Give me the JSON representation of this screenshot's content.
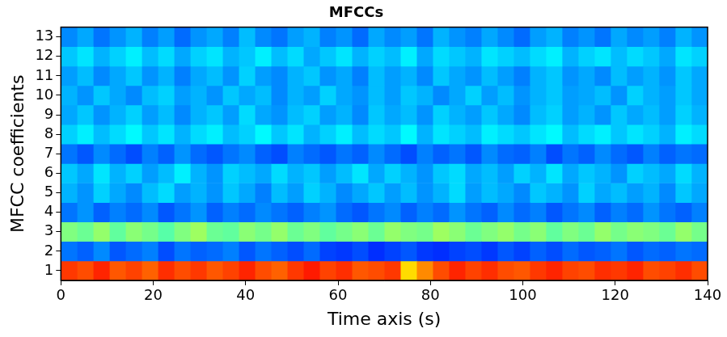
{
  "chart_data": {
    "type": "heatmap",
    "title": "MFCCs",
    "x_label": "Time axis (s)",
    "y_label": "MFCC coefficients",
    "xlim": [
      0,
      140
    ],
    "xticks": [
      0,
      20,
      40,
      60,
      80,
      100,
      120,
      140
    ],
    "y": [
      1,
      2,
      3,
      4,
      5,
      6,
      7,
      8,
      9,
      10,
      11,
      12,
      13
    ],
    "color": "jet",
    "zlim": [
      0,
      1
    ],
    "grid": false,
    "x_bins": [
      0,
      3.5,
      7,
      10.5,
      14,
      17.5,
      21,
      24.5,
      28,
      31.5,
      35,
      38.5,
      42,
      45.5,
      49,
      52.5,
      56,
      59.5,
      63,
      66.5,
      70,
      73.5,
      77,
      80.5,
      84,
      87.5,
      91,
      94.5,
      98,
      101.5,
      105,
      108.5,
      112,
      115.5,
      119,
      122.5,
      126,
      129.5,
      133,
      136.5,
      140
    ],
    "cells": [
      [
        0.82,
        0.8,
        0.84,
        0.79,
        0.81,
        0.78,
        0.83,
        0.8,
        0.82,
        0.79,
        0.81,
        0.84,
        0.8,
        0.78,
        0.82,
        0.85,
        0.81,
        0.83,
        0.79,
        0.8,
        0.82,
        0.66,
        0.74,
        0.8,
        0.84,
        0.81,
        0.83,
        0.8,
        0.79,
        0.82,
        0.84,
        0.81,
        0.8,
        0.83,
        0.82,
        0.84,
        0.8,
        0.81,
        0.83,
        0.8
      ],
      [
        0.24,
        0.22,
        0.26,
        0.21,
        0.23,
        0.25,
        0.2,
        0.24,
        0.22,
        0.23,
        0.25,
        0.21,
        0.24,
        0.22,
        0.2,
        0.23,
        0.19,
        0.18,
        0.2,
        0.17,
        0.19,
        0.21,
        0.18,
        0.17,
        0.19,
        0.2,
        0.18,
        0.21,
        0.19,
        0.22,
        0.2,
        0.23,
        0.21,
        0.22,
        0.24,
        0.21,
        0.23,
        0.22,
        0.24,
        0.23
      ],
      [
        0.5,
        0.48,
        0.52,
        0.47,
        0.51,
        0.49,
        0.46,
        0.5,
        0.53,
        0.48,
        0.47,
        0.51,
        0.49,
        0.52,
        0.48,
        0.5,
        0.47,
        0.49,
        0.51,
        0.48,
        0.52,
        0.5,
        0.49,
        0.53,
        0.51,
        0.48,
        0.5,
        0.52,
        0.49,
        0.51,
        0.47,
        0.5,
        0.48,
        0.52,
        0.49,
        0.51,
        0.5,
        0.48,
        0.52,
        0.49
      ],
      [
        0.24,
        0.27,
        0.22,
        0.25,
        0.23,
        0.26,
        0.21,
        0.24,
        0.27,
        0.22,
        0.25,
        0.23,
        0.26,
        0.24,
        0.22,
        0.25,
        0.27,
        0.23,
        0.21,
        0.24,
        0.26,
        0.22,
        0.25,
        0.23,
        0.27,
        0.24,
        0.22,
        0.26,
        0.23,
        0.25,
        0.21,
        0.24,
        0.26,
        0.22,
        0.25,
        0.23,
        0.27,
        0.24,
        0.22,
        0.25
      ],
      [
        0.3,
        0.27,
        0.33,
        0.29,
        0.26,
        0.31,
        0.34,
        0.28,
        0.3,
        0.27,
        0.32,
        0.29,
        0.25,
        0.31,
        0.28,
        0.33,
        0.3,
        0.26,
        0.29,
        0.32,
        0.28,
        0.31,
        0.27,
        0.3,
        0.34,
        0.28,
        0.31,
        0.29,
        0.26,
        0.32,
        0.3,
        0.27,
        0.33,
        0.29,
        0.31,
        0.28,
        0.3,
        0.26,
        0.32,
        0.29
      ],
      [
        0.32,
        0.29,
        0.35,
        0.3,
        0.33,
        0.28,
        0.31,
        0.36,
        0.3,
        0.27,
        0.33,
        0.31,
        0.29,
        0.34,
        0.3,
        0.32,
        0.28,
        0.31,
        0.35,
        0.29,
        0.33,
        0.3,
        0.27,
        0.32,
        0.34,
        0.29,
        0.31,
        0.28,
        0.33,
        0.3,
        0.35,
        0.29,
        0.32,
        0.3,
        0.27,
        0.33,
        0.31,
        0.29,
        0.34,
        0.3
      ],
      [
        0.24,
        0.21,
        0.26,
        0.23,
        0.2,
        0.25,
        0.22,
        0.27,
        0.23,
        0.21,
        0.24,
        0.26,
        0.22,
        0.2,
        0.25,
        0.23,
        0.21,
        0.24,
        0.22,
        0.26,
        0.23,
        0.2,
        0.25,
        0.22,
        0.24,
        0.21,
        0.26,
        0.23,
        0.22,
        0.25,
        0.2,
        0.24,
        0.22,
        0.26,
        0.23,
        0.21,
        0.25,
        0.22,
        0.24,
        0.23
      ],
      [
        0.33,
        0.36,
        0.31,
        0.34,
        0.37,
        0.32,
        0.35,
        0.3,
        0.34,
        0.36,
        0.31,
        0.33,
        0.37,
        0.32,
        0.35,
        0.3,
        0.33,
        0.36,
        0.31,
        0.34,
        0.32,
        0.37,
        0.3,
        0.35,
        0.33,
        0.31,
        0.36,
        0.34,
        0.32,
        0.35,
        0.37,
        0.31,
        0.34,
        0.36,
        0.32,
        0.35,
        0.33,
        0.3,
        0.36,
        0.34
      ],
      [
        0.29,
        0.32,
        0.27,
        0.3,
        0.33,
        0.28,
        0.31,
        0.26,
        0.3,
        0.32,
        0.28,
        0.34,
        0.29,
        0.27,
        0.31,
        0.33,
        0.28,
        0.3,
        0.26,
        0.32,
        0.29,
        0.31,
        0.27,
        0.33,
        0.3,
        0.28,
        0.32,
        0.29,
        0.26,
        0.31,
        0.33,
        0.28,
        0.3,
        0.27,
        0.32,
        0.29,
        0.31,
        0.28,
        0.33,
        0.3
      ],
      [
        0.3,
        0.27,
        0.32,
        0.29,
        0.26,
        0.31,
        0.33,
        0.28,
        0.3,
        0.27,
        0.32,
        0.29,
        0.31,
        0.26,
        0.3,
        0.28,
        0.33,
        0.29,
        0.27,
        0.31,
        0.28,
        0.32,
        0.3,
        0.26,
        0.29,
        0.33,
        0.28,
        0.31,
        0.27,
        0.3,
        0.32,
        0.28,
        0.29,
        0.31,
        0.27,
        0.33,
        0.3,
        0.28,
        0.32,
        0.29
      ],
      [
        0.28,
        0.31,
        0.26,
        0.29,
        0.32,
        0.27,
        0.3,
        0.25,
        0.29,
        0.31,
        0.27,
        0.33,
        0.28,
        0.26,
        0.3,
        0.32,
        0.27,
        0.29,
        0.25,
        0.31,
        0.28,
        0.3,
        0.26,
        0.32,
        0.29,
        0.27,
        0.31,
        0.28,
        0.25,
        0.3,
        0.32,
        0.27,
        0.29,
        0.26,
        0.31,
        0.28,
        0.3,
        0.27,
        0.32,
        0.29
      ],
      [
        0.32,
        0.35,
        0.3,
        0.33,
        0.36,
        0.31,
        0.34,
        0.29,
        0.33,
        0.35,
        0.3,
        0.32,
        0.36,
        0.31,
        0.34,
        0.29,
        0.32,
        0.35,
        0.3,
        0.33,
        0.31,
        0.36,
        0.29,
        0.34,
        0.32,
        0.3,
        0.35,
        0.33,
        0.31,
        0.34,
        0.36,
        0.3,
        0.33,
        0.35,
        0.31,
        0.34,
        0.32,
        0.29,
        0.35,
        0.33
      ],
      [
        0.26,
        0.29,
        0.24,
        0.27,
        0.3,
        0.25,
        0.28,
        0.23,
        0.27,
        0.29,
        0.25,
        0.31,
        0.26,
        0.24,
        0.28,
        0.3,
        0.25,
        0.27,
        0.23,
        0.29,
        0.26,
        0.28,
        0.24,
        0.3,
        0.27,
        0.25,
        0.29,
        0.26,
        0.23,
        0.28,
        0.3,
        0.25,
        0.27,
        0.24,
        0.29,
        0.26,
        0.28,
        0.25,
        0.3,
        0.27
      ]
    ]
  }
}
